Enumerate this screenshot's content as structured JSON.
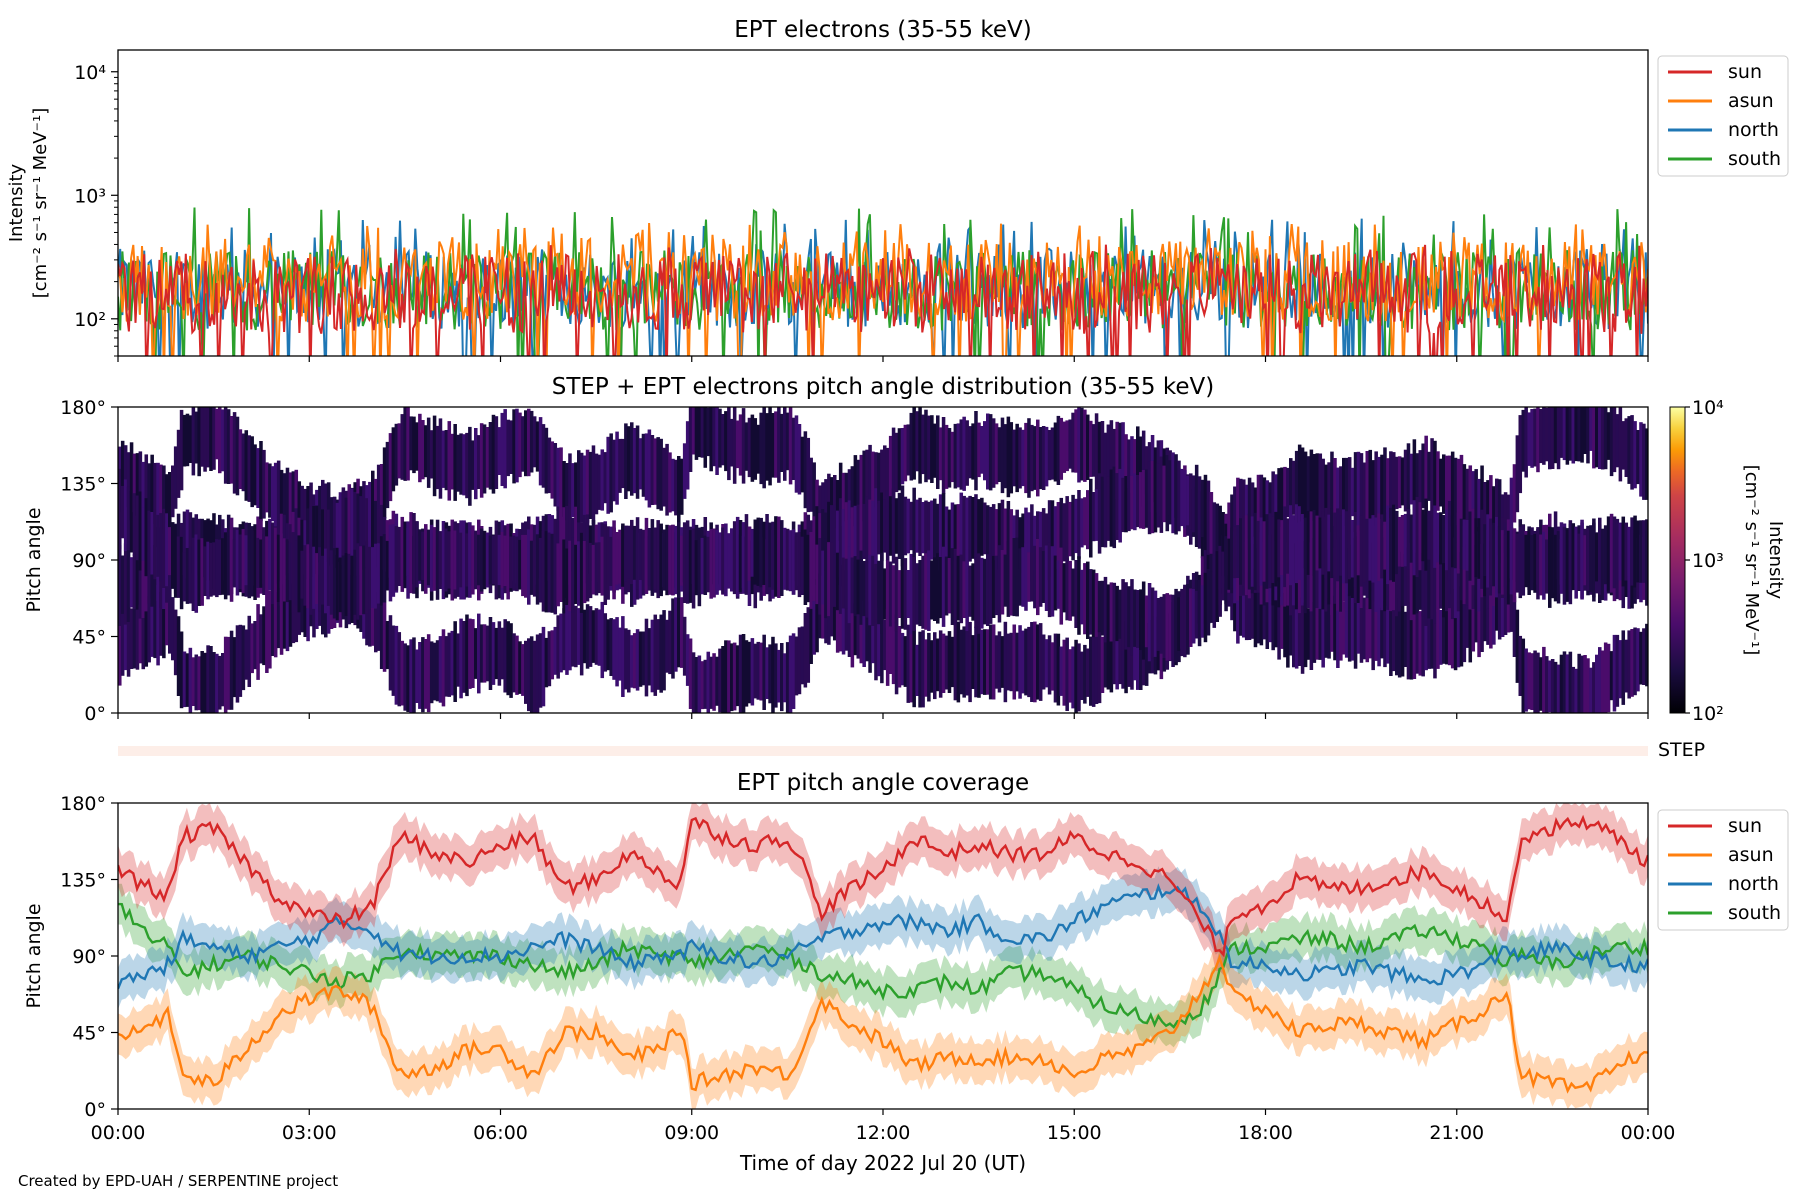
{
  "figure": {
    "credit": "Created by EPD-UAH / SERPENTINE project",
    "xlabel": "Time of day 2022 Jul 20 (UT)",
    "xticks": [
      "00:00",
      "03:00",
      "06:00",
      "09:00",
      "12:00",
      "15:00",
      "18:00",
      "21:00",
      "00:00"
    ]
  },
  "chart_data": [
    {
      "id": "intensity",
      "type": "line",
      "title": "EPT electrons (35-55 keV)",
      "ylabel": [
        "Intensity",
        "[cm⁻² s⁻¹ sr⁻¹ MeV⁻¹]"
      ],
      "yscale": "log",
      "ylim": [
        50,
        15000
      ],
      "yticks": [
        "10²",
        "10³",
        "10⁴"
      ],
      "xlim_hours": [
        0,
        24
      ],
      "legend": "outside-right",
      "series": [
        {
          "name": "north",
          "color": "#1f77b4",
          "median": 175,
          "max_spikes": 650
        },
        {
          "name": "south",
          "color": "#2ca02c",
          "median": 170,
          "max_spikes": 800
        },
        {
          "name": "asun",
          "color": "#ff7f0e",
          "median": 200,
          "max_spikes": 600
        },
        {
          "name": "sun",
          "color": "#d62728",
          "median": 160,
          "max_spikes": 400
        }
      ],
      "legend_order": [
        "sun",
        "asun",
        "north",
        "south"
      ]
    },
    {
      "id": "pad",
      "type": "heatmap",
      "title": "STEP + EPT electrons pitch angle distribution (35-55 keV)",
      "ylabel": "Pitch angle",
      "yticks": [
        "0°",
        "45°",
        "90°",
        "135°",
        "180°"
      ],
      "ylim": [
        0,
        180
      ],
      "xlim_hours": [
        0,
        24
      ],
      "colorbar": {
        "label": [
          "Intensity",
          "[cm⁻² s⁻¹ sr⁻¹ MeV⁻¹]"
        ],
        "scale": "log",
        "range": [
          100,
          10000
        ],
        "ticks": [
          "10²",
          "10³",
          "10⁴"
        ],
        "colormap": "inferno"
      }
    },
    {
      "id": "step",
      "type": "bar",
      "label": "STEP",
      "color": "#fdeee8"
    },
    {
      "id": "coverage",
      "type": "line",
      "title": "EPT pitch angle coverage",
      "ylabel": "Pitch angle",
      "yticks": [
        "0°",
        "45°",
        "90°",
        "135°",
        "180°"
      ],
      "ylim": [
        0,
        180
      ],
      "xlim_hours": [
        0,
        24
      ],
      "legend": "outside-right",
      "series": [
        {
          "name": "sun",
          "color": "#d62728",
          "x": [
            0,
            0.5,
            0.8,
            1,
            1.5,
            2,
            2.5,
            3,
            3.5,
            4,
            4.3,
            4.5,
            5,
            5.5,
            6,
            6.5,
            7,
            7.5,
            8,
            8.5,
            8.8,
            9,
            9.5,
            10,
            10.5,
            10.8,
            11,
            11.5,
            12,
            12.5,
            13,
            13.5,
            14,
            14.5,
            15,
            15.5,
            16,
            16.5,
            17,
            17.3,
            17.5,
            18,
            18.5,
            19,
            19.5,
            20,
            20.5,
            21,
            21.5,
            21.8,
            22,
            22.5,
            23,
            23.5,
            24
          ],
          "y": [
            140,
            130,
            125,
            160,
            165,
            145,
            125,
            115,
            110,
            120,
            150,
            160,
            150,
            145,
            155,
            160,
            130,
            135,
            150,
            140,
            130,
            170,
            160,
            155,
            160,
            140,
            115,
            130,
            140,
            160,
            150,
            155,
            150,
            150,
            160,
            150,
            145,
            135,
            110,
            90,
            115,
            120,
            135,
            130,
            130,
            135,
            140,
            130,
            120,
            110,
            160,
            165,
            170,
            160,
            145
          ]
        },
        {
          "name": "asun",
          "color": "#ff7f0e",
          "x": [
            0,
            0.5,
            0.8,
            1,
            1.5,
            2,
            2.5,
            3,
            3.5,
            4,
            4.3,
            4.5,
            5,
            5.5,
            6,
            6.5,
            7,
            7.5,
            8,
            8.5,
            8.8,
            9,
            9.5,
            10,
            10.5,
            10.8,
            11,
            11.5,
            12,
            12.5,
            13,
            13.5,
            14,
            14.5,
            15,
            15.5,
            16,
            16.5,
            17,
            17.3,
            17.5,
            18,
            18.5,
            19,
            19.5,
            20,
            20.5,
            21,
            21.5,
            21.8,
            22,
            22.5,
            23,
            23.5,
            24
          ],
          "y": [
            40,
            50,
            55,
            20,
            15,
            35,
            55,
            65,
            70,
            60,
            30,
            20,
            25,
            35,
            35,
            20,
            45,
            45,
            30,
            35,
            50,
            15,
            20,
            25,
            20,
            40,
            65,
            50,
            40,
            25,
            30,
            30,
            30,
            30,
            20,
            30,
            35,
            45,
            70,
            90,
            65,
            60,
            45,
            50,
            50,
            45,
            40,
            50,
            60,
            70,
            20,
            15,
            10,
            25,
            35
          ]
        },
        {
          "name": "north",
          "color": "#1f77b4",
          "x": [
            0,
            0.5,
            0.8,
            1,
            1.5,
            2,
            2.5,
            3,
            3.5,
            4,
            4.3,
            4.5,
            5,
            5.5,
            6,
            6.5,
            7,
            7.5,
            8,
            8.5,
            8.8,
            9,
            9.5,
            10,
            10.5,
            10.8,
            11,
            11.5,
            12,
            12.5,
            13,
            13.5,
            14,
            14.5,
            15,
            15.5,
            16,
            16.5,
            17,
            17.3,
            17.5,
            18,
            18.5,
            19,
            19.5,
            20,
            20.5,
            21,
            21.5,
            21.8,
            22,
            22.5,
            23,
            23.5,
            24
          ],
          "y": [
            75,
            80,
            85,
            100,
            95,
            90,
            95,
            100,
            110,
            105,
            95,
            90,
            90,
            90,
            90,
            95,
            100,
            95,
            85,
            90,
            90,
            95,
            90,
            85,
            90,
            95,
            100,
            105,
            110,
            110,
            105,
            110,
            100,
            100,
            110,
            120,
            125,
            130,
            120,
            100,
            85,
            85,
            80,
            80,
            85,
            80,
            75,
            80,
            85,
            95,
            90,
            95,
            90,
            85,
            85
          ]
        },
        {
          "name": "south",
          "color": "#2ca02c",
          "x": [
            0,
            0.5,
            0.8,
            1,
            1.5,
            2,
            2.5,
            3,
            3.5,
            4,
            4.3,
            4.5,
            5,
            5.5,
            6,
            6.5,
            7,
            7.5,
            8,
            8.5,
            8.8,
            9,
            9.5,
            10,
            10.5,
            10.8,
            11,
            11.5,
            12,
            12.5,
            13,
            13.5,
            14,
            14.5,
            15,
            15.5,
            16,
            16.5,
            17,
            17.3,
            17.5,
            18,
            18.5,
            19,
            19.5,
            20,
            20.5,
            21,
            21.5,
            21.8,
            22,
            22.5,
            23,
            23.5,
            24
          ],
          "y": [
            120,
            100,
            95,
            80,
            85,
            90,
            85,
            80,
            75,
            80,
            90,
            95,
            90,
            90,
            90,
            85,
            80,
            85,
            95,
            90,
            90,
            85,
            90,
            95,
            90,
            85,
            80,
            75,
            70,
            70,
            75,
            70,
            80,
            80,
            70,
            60,
            55,
            50,
            60,
            80,
            95,
            95,
            100,
            100,
            95,
            100,
            105,
            100,
            95,
            85,
            90,
            85,
            90,
            95,
            95
          ]
        }
      ],
      "band_halfwidth_deg": 12
    }
  ]
}
